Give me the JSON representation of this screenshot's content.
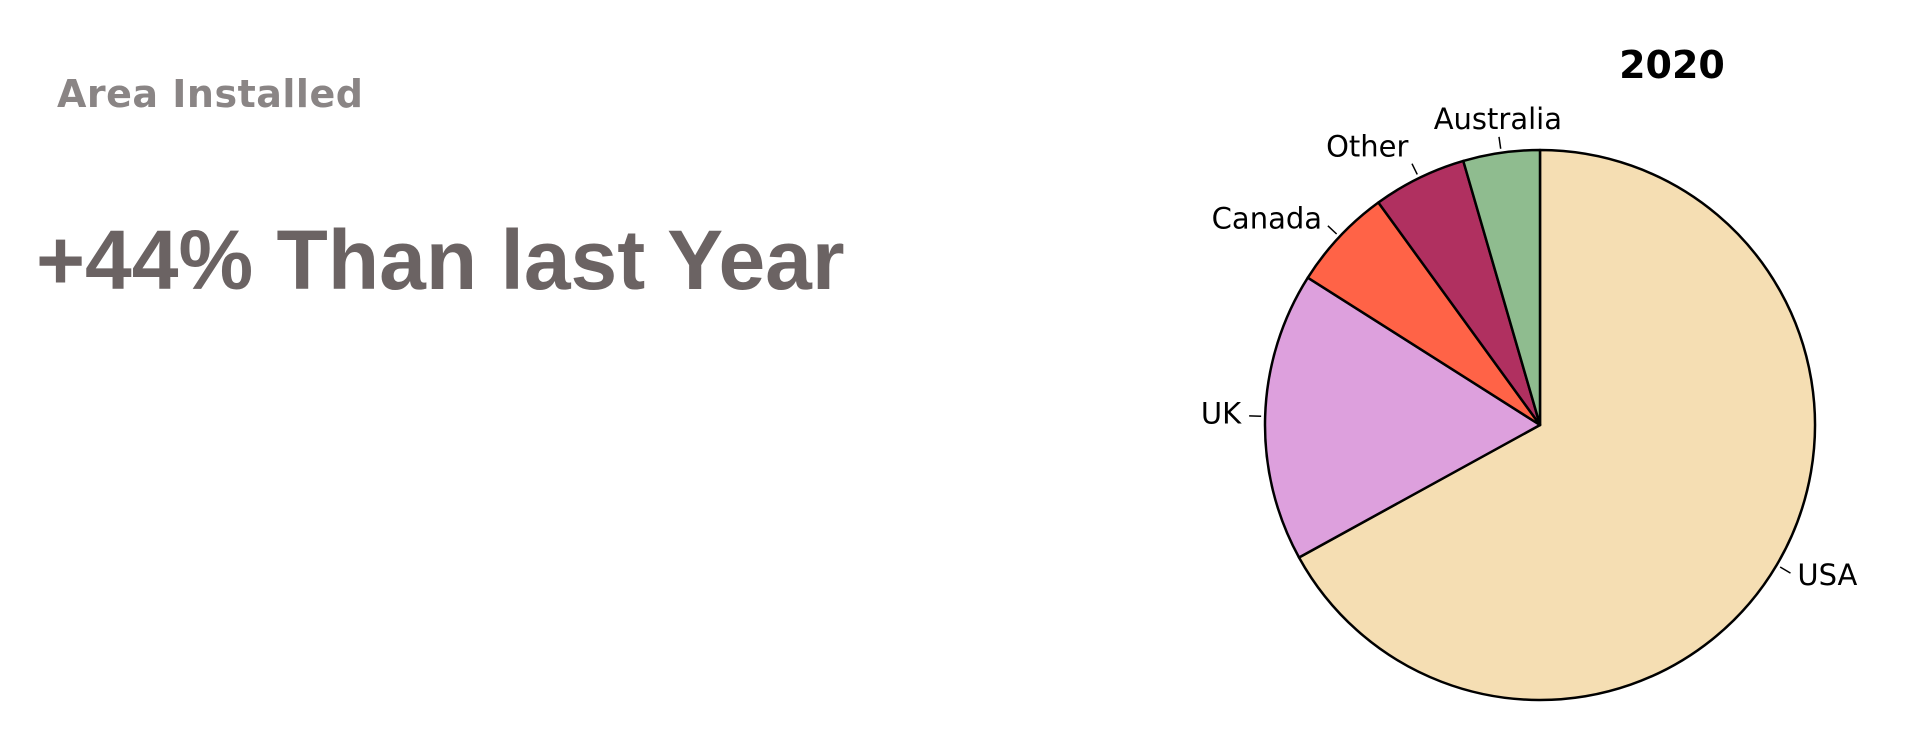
{
  "kpi": {
    "label": "Area Installed",
    "value": "+44% Than last Year"
  },
  "chart_data": {
    "type": "pie",
    "title": "2020",
    "start_angle_deg": 90,
    "direction": "clockwise",
    "slices": [
      {
        "label": "USA",
        "value": 0.67,
        "color": "#F5DEB3"
      },
      {
        "label": "UK",
        "value": 0.17,
        "color": "#DDA0DD"
      },
      {
        "label": "Canada",
        "value": 0.06,
        "color": "#FF6347"
      },
      {
        "label": "Other",
        "value": 0.055,
        "color": "#B03060"
      },
      {
        "label": "Australia",
        "value": 0.045,
        "color": "#8FBC8F"
      }
    ]
  }
}
